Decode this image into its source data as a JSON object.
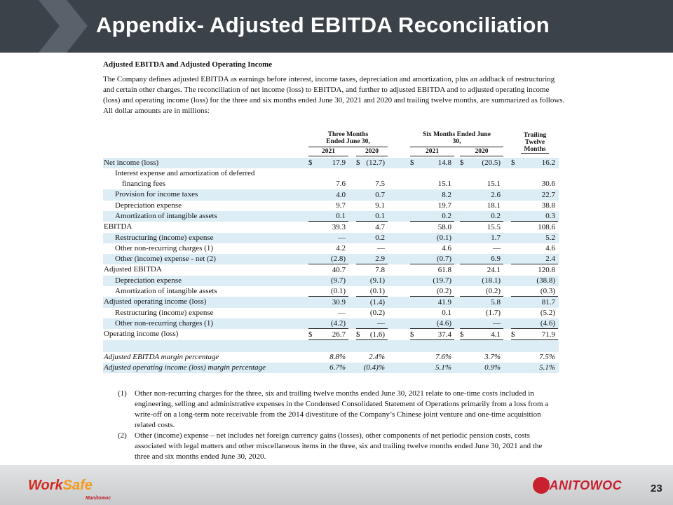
{
  "header": {
    "title": "Appendix- Adjusted EBITDA Reconciliation"
  },
  "section": {
    "heading": "Adjusted EBITDA and Adjusted Operating Income",
    "intro": "The Company defines adjusted EBITDA as earnings before interest, income taxes, depreciation and amortization, plus an addback of restructuring and certain other charges. The reconciliation of net income (loss) to EBITDA, and further to adjusted EBITDA and to adjusted operating income (loss) and operating income (loss) for the three and six months ended June 30, 2021 and 2020 and trailing twelve months, are summarized as follows. All dollar amounts are in millions:"
  },
  "table": {
    "group_headers": [
      "Three Months Ended June 30,",
      "Six Months Ended June 30,",
      "Trailing Twelve Months"
    ],
    "year_headers": [
      "2021",
      "2020",
      "2021",
      "2020"
    ],
    "rows": [
      {
        "label": "Net income (loss)",
        "indent": false,
        "currency": "$",
        "values": [
          "17.9",
          "(12.7)",
          "14.8",
          "(20.5)",
          "16.2"
        ]
      },
      {
        "label": "Interest expense and amortization of deferred financing fees",
        "indent": true,
        "values": [
          "7.6",
          "7.5",
          "15.1",
          "15.1",
          "30.6"
        ]
      },
      {
        "label": "Provision for income taxes",
        "indent": true,
        "values": [
          "4.0",
          "0.7",
          "8.2",
          "2.6",
          "22.7"
        ]
      },
      {
        "label": "Depreciation expense",
        "indent": true,
        "values": [
          "9.7",
          "9.1",
          "19.7",
          "18.1",
          "38.8"
        ]
      },
      {
        "label": "Amortization of intangible assets",
        "indent": true,
        "rule": "single",
        "values": [
          "0.1",
          "0.1",
          "0.2",
          "0.2",
          "0.3"
        ]
      },
      {
        "label": "EBITDA",
        "indent": false,
        "values": [
          "39.3",
          "4.7",
          "58.0",
          "15.5",
          "108.6"
        ]
      },
      {
        "label": "Restructuring (income) expense",
        "indent": true,
        "values": [
          "—",
          "0.2",
          "(0.1)",
          "1.7",
          "5.2"
        ]
      },
      {
        "label": "Other non-recurring charges (1)",
        "indent": true,
        "values": [
          "4.2",
          "—",
          "4.6",
          "—",
          "4.6"
        ]
      },
      {
        "label": "Other (income) expense - net (2)",
        "indent": true,
        "rule": "single",
        "values": [
          "(2.8)",
          "2.9",
          "(0.7)",
          "6.9",
          "2.4"
        ]
      },
      {
        "label": "Adjusted EBITDA",
        "indent": false,
        "values": [
          "40.7",
          "7.8",
          "61.8",
          "24.1",
          "120.8"
        ]
      },
      {
        "label": "Depreciation expense",
        "indent": true,
        "values": [
          "(9.7)",
          "(9.1)",
          "(19.7)",
          "(18.1)",
          "(38.8)"
        ]
      },
      {
        "label": "Amortization of intangible assets",
        "indent": true,
        "rule": "single",
        "values": [
          "(0.1)",
          "(0.1)",
          "(0.2)",
          "(0.2)",
          "(0.3)"
        ]
      },
      {
        "label": "Adjusted operating income (loss)",
        "indent": false,
        "values": [
          "30.9",
          "(1.4)",
          "41.9",
          "5.8",
          "81.7"
        ]
      },
      {
        "label": "Restructuring (income) expense",
        "indent": true,
        "values": [
          "—",
          "(0.2)",
          "0.1",
          "(1.7)",
          "(5.2)"
        ]
      },
      {
        "label": "Other non-recurring charges (1)",
        "indent": true,
        "rule": "single",
        "values": [
          "(4.2)",
          "—",
          "(4.6)",
          "—",
          "(4.6)"
        ]
      },
      {
        "label": "Operating income (loss)",
        "indent": false,
        "currency": "$",
        "rule": "double",
        "values": [
          "26.7",
          "(1.6)",
          "37.4",
          "4.1",
          "71.9"
        ]
      },
      {
        "label": "Adjusted EBITDA margin percentage",
        "indent": false,
        "italic": true,
        "values": [
          "8.8%",
          "2.4%",
          "7.6%",
          "3.7%",
          "7.5%"
        ]
      },
      {
        "label": "Adjusted operating income (loss) margin percentage",
        "indent": false,
        "italic": true,
        "values": [
          "6.7%",
          "(0.4)%",
          "5.1%",
          "0.9%",
          "5.1%"
        ]
      }
    ]
  },
  "footnotes": [
    {
      "marker": "(1)",
      "text": "Other non-recurring charges for the three, six and trailing twelve months ended June 30, 2021 relate to one-time costs included in engineering, selling and administrative expenses in the Condensed Consolidated Statement of Operations primarily from a loss from a write-off on a long-term note receivable from the 2014 divestiture of the Company’s Chinese joint venture and one-time acquisition related costs."
    },
    {
      "marker": "(2)",
      "text": "Other (income) expense – net includes net foreign currency gains (losses), other components of net periodic pension costs, costs associated with legal matters and other miscellaneous items in the three, six and trailing twelve months ended June 30, 2021 and the three and six months ended June 30, 2020."
    }
  ],
  "footer": {
    "worksafe_work": "Work",
    "worksafe_safe": "Safe",
    "worksafe_sub": "Manitowoc",
    "brand": "Manitowoc",
    "page_number": "23"
  }
}
